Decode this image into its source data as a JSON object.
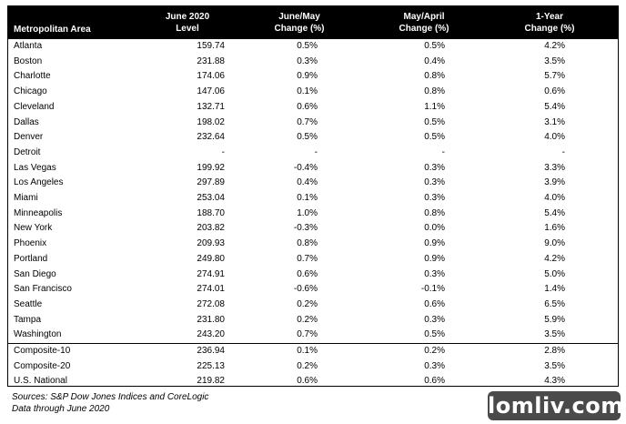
{
  "table": {
    "headers": {
      "area": "Metropolitan Area",
      "level_line1": "June 2020",
      "level_line2": "Level",
      "mom_line1": "June/May",
      "mom_line2": "Change (%)",
      "ma_line1": "May/April",
      "ma_line2": "Change (%)",
      "yoy_line1": "1-Year",
      "yoy_line2": "Change (%)"
    },
    "rows": [
      {
        "area": "Atlanta",
        "level": "159.74",
        "mom": "0.5%",
        "ma": "0.5%",
        "yoy": "4.2%"
      },
      {
        "area": "Boston",
        "level": "231.88",
        "mom": "0.3%",
        "ma": "0.4%",
        "yoy": "3.5%"
      },
      {
        "area": "Charlotte",
        "level": "174.06",
        "mom": "0.9%",
        "ma": "0.8%",
        "yoy": "5.7%"
      },
      {
        "area": "Chicago",
        "level": "147.06",
        "mom": "0.1%",
        "ma": "0.8%",
        "yoy": "0.6%"
      },
      {
        "area": "Cleveland",
        "level": "132.71",
        "mom": "0.6%",
        "ma": "1.1%",
        "yoy": "5.4%"
      },
      {
        "area": "Dallas",
        "level": "198.02",
        "mom": "0.7%",
        "ma": "0.5%",
        "yoy": "3.1%"
      },
      {
        "area": "Denver",
        "level": "232.64",
        "mom": "0.5%",
        "ma": "0.5%",
        "yoy": "4.0%"
      },
      {
        "area": "Detroit",
        "level": "-",
        "mom": "-",
        "ma": "-",
        "yoy": "-"
      },
      {
        "area": "Las Vegas",
        "level": "199.92",
        "mom": "-0.4%",
        "ma": "0.3%",
        "yoy": "3.3%"
      },
      {
        "area": "Los Angeles",
        "level": "297.89",
        "mom": "0.4%",
        "ma": "0.3%",
        "yoy": "3.9%"
      },
      {
        "area": "Miami",
        "level": "253.04",
        "mom": "0.1%",
        "ma": "0.3%",
        "yoy": "4.0%"
      },
      {
        "area": "Minneapolis",
        "level": "188.70",
        "mom": "1.0%",
        "ma": "0.8%",
        "yoy": "5.4%"
      },
      {
        "area": "New York",
        "level": "203.82",
        "mom": "-0.3%",
        "ma": "0.0%",
        "yoy": "1.6%"
      },
      {
        "area": "Phoenix",
        "level": "209.93",
        "mom": "0.8%",
        "ma": "0.9%",
        "yoy": "9.0%"
      },
      {
        "area": "Portland",
        "level": "249.80",
        "mom": "0.7%",
        "ma": "0.9%",
        "yoy": "4.2%"
      },
      {
        "area": "San Diego",
        "level": "274.91",
        "mom": "0.6%",
        "ma": "0.3%",
        "yoy": "5.0%"
      },
      {
        "area": "San Francisco",
        "level": "274.01",
        "mom": "-0.6%",
        "ma": "-0.1%",
        "yoy": "1.4%"
      },
      {
        "area": "Seattle",
        "level": "272.08",
        "mom": "0.2%",
        "ma": "0.6%",
        "yoy": "6.5%"
      },
      {
        "area": "Tampa",
        "level": "231.80",
        "mom": "0.2%",
        "ma": "0.3%",
        "yoy": "5.9%"
      },
      {
        "area": "Washington",
        "level": "243.20",
        "mom": "0.7%",
        "ma": "0.5%",
        "yoy": "3.5%"
      },
      {
        "area": "Composite-10",
        "level": "236.94",
        "mom": "0.1%",
        "ma": "0.2%",
        "yoy": "2.8%"
      },
      {
        "area": "Composite-20",
        "level": "225.13",
        "mom": "0.2%",
        "ma": "0.3%",
        "yoy": "3.5%"
      },
      {
        "area": "U.S. National",
        "level": "219.82",
        "mom": "0.6%",
        "ma": "0.6%",
        "yoy": "4.3%"
      }
    ]
  },
  "footer": {
    "sources": "Sources: S&P Dow Jones Indices and CoreLogic",
    "data_through": "Data through June 2020"
  },
  "watermark": {
    "text": "lomliv.com"
  },
  "colors": {
    "header_bg": "#000000",
    "header_text": "#ffffff",
    "watermark_bg": "#4a4a4a"
  }
}
